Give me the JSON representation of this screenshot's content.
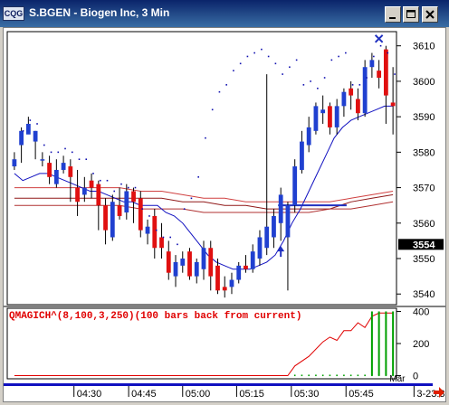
{
  "window": {
    "logo_text": "CQG",
    "title": "S.BGEN - Biogen Inc, 3 Min"
  },
  "colors": {
    "up_candle": "#2040d0",
    "down_candle": "#e01010",
    "price_axis_highlight": "#000000",
    "indicator_text": "#e00000",
    "indicator_line": "#e00000",
    "indicator_bars": "#00a000"
  },
  "chart_data": [
    {
      "type": "candlestick",
      "title": "S.BGEN - Biogen Inc, 3 Min",
      "ylim": [
        3537,
        3614
      ],
      "y_ticks": [
        3540,
        3550,
        3560,
        3570,
        3580,
        3590,
        3600,
        3610
      ],
      "current_price": 3554,
      "x_tick_labels": [
        "04:30",
        "04:45",
        "05:00",
        "05:15",
        "05:30",
        "05:45",
        "3-23:30"
      ],
      "x_tick_positions": [
        8.5,
        16.3,
        24.0,
        31.7,
        39.5,
        47.3,
        57.0
      ],
      "x_extra_label": {
        "text": "Mar",
        "position": 53.5
      },
      "candles": [
        [
          3576,
          3578,
          3580,
          3575
        ],
        [
          3582,
          3586,
          3587,
          3577
        ],
        [
          3585,
          3588,
          3590,
          3586
        ],
        [
          3583,
          3586,
          3586,
          3578
        ],
        [
          3578,
          3578,
          3580,
          3576
        ],
        [
          3577,
          3573,
          3579,
          3571
        ],
        [
          3571,
          3575,
          3578,
          3570
        ],
        [
          3575,
          3577,
          3579,
          3574
        ],
        [
          3576,
          3573,
          3578,
          3566
        ],
        [
          3570,
          3566,
          3575,
          3562
        ],
        [
          3568,
          3570,
          3573,
          3566
        ],
        [
          3572,
          3570,
          3574,
          3567
        ],
        [
          3571,
          3565,
          3572,
          3558
        ],
        [
          3565,
          3558,
          3567,
          3554
        ],
        [
          3556,
          3566,
          3568,
          3555
        ],
        [
          3565,
          3562,
          3570,
          3561
        ],
        [
          3563,
          3569,
          3571,
          3561
        ],
        [
          3569,
          3566,
          3570,
          3560
        ],
        [
          3567,
          3558,
          3569,
          3556
        ],
        [
          3557,
          3559,
          3561,
          3554
        ],
        [
          3562,
          3553,
          3564,
          3550
        ],
        [
          3556,
          3553,
          3560,
          3550
        ],
        [
          3552,
          3546,
          3555,
          3544
        ],
        [
          3545,
          3549,
          3551,
          3542
        ],
        [
          3548,
          3550,
          3552,
          3546
        ],
        [
          3552,
          3545,
          3553,
          3544
        ],
        [
          3545,
          3549,
          3550,
          3543
        ],
        [
          3547,
          3553,
          3555,
          3544
        ],
        [
          3553,
          3545,
          3555,
          3541
        ],
        [
          3548,
          3541,
          3550,
          3540
        ],
        [
          3542,
          3541,
          3545,
          3539
        ],
        [
          3542,
          3544,
          3546,
          3540
        ],
        [
          3544,
          3548,
          3549,
          3543
        ],
        [
          3548,
          3547,
          3551,
          3546
        ],
        [
          3547,
          3552,
          3554,
          3546
        ],
        [
          3550,
          3556,
          3558,
          3548
        ],
        [
          3553,
          3559,
          3602,
          3551
        ],
        [
          3556,
          3562,
          3564,
          3553
        ],
        [
          3560,
          3568,
          3570,
          3555
        ],
        [
          3556,
          3565,
          3566,
          3541
        ],
        [
          3565,
          3576,
          3578,
          3563
        ],
        [
          3575,
          3583,
          3586,
          3574
        ],
        [
          3582,
          3587,
          3590,
          3580
        ],
        [
          3586,
          3593,
          3594,
          3585
        ],
        [
          3591,
          3592,
          3596,
          3588
        ],
        [
          3593,
          3587,
          3594,
          3585
        ],
        [
          3587,
          3593,
          3595,
          3585
        ],
        [
          3593,
          3597,
          3598,
          3590
        ],
        [
          3598,
          3596,
          3600,
          3592
        ],
        [
          3595,
          3591,
          3598,
          3589
        ],
        [
          3591,
          3604,
          3606,
          3590
        ],
        [
          3604,
          3606,
          3608,
          3601
        ],
        [
          3603,
          3601,
          3606,
          3598
        ],
        [
          3609,
          3596,
          3610,
          3588
        ],
        [
          3594,
          3593,
          3604,
          3585
        ]
      ],
      "dots": [
        [
          3,
          3586
        ],
        [
          5,
          3589
        ],
        [
          7,
          3588
        ],
        [
          9,
          3582
        ],
        [
          11,
          3580
        ],
        [
          13,
          3580
        ],
        [
          15,
          3581
        ],
        [
          17,
          3580
        ],
        [
          19,
          3578
        ],
        [
          21,
          3578
        ],
        [
          23,
          3574
        ],
        [
          25,
          3572
        ],
        [
          27,
          3572
        ],
        [
          29,
          3569
        ],
        [
          31,
          3571
        ],
        [
          33,
          3570
        ],
        [
          35,
          3570
        ],
        [
          37,
          3564
        ],
        [
          39,
          3562
        ],
        [
          41,
          3558
        ],
        [
          43,
          3556
        ],
        [
          45,
          3556
        ],
        [
          47,
          3554
        ],
        [
          49,
          3564
        ],
        [
          51,
          3567
        ],
        [
          53,
          3573
        ],
        [
          55,
          3584
        ],
        [
          57,
          3592
        ],
        [
          59,
          3597
        ],
        [
          61,
          3599
        ],
        [
          63,
          3603
        ],
        [
          65,
          3605
        ],
        [
          67,
          3607
        ],
        [
          69,
          3608
        ],
        [
          71,
          3609
        ],
        [
          73,
          3607
        ],
        [
          75,
          3605
        ],
        [
          77,
          3602
        ],
        [
          79,
          3604
        ],
        [
          81,
          3606
        ],
        [
          83,
          3599
        ],
        [
          85,
          3600
        ],
        [
          87,
          3598
        ],
        [
          89,
          3601
        ],
        [
          91,
          3606
        ],
        [
          93,
          3607
        ],
        [
          95,
          3608
        ],
        [
          97,
          3599
        ],
        [
          99,
          3599
        ],
        [
          101,
          3601
        ],
        [
          103,
          3607
        ],
        [
          105,
          3610
        ],
        [
          107,
          3608
        ],
        [
          109,
          3602
        ]
      ],
      "moving_average_blue": [
        3574,
        3572,
        3573,
        3574,
        3574,
        3573,
        3572,
        3571,
        3570,
        3569,
        3569,
        3568,
        3567,
        3566,
        3566,
        3565,
        3565,
        3565,
        3563,
        3562,
        3560,
        3557,
        3554,
        3551,
        3549,
        3548,
        3547,
        3547,
        3547,
        3548,
        3549,
        3551,
        3555,
        3560,
        3564,
        3569,
        3574,
        3579,
        3584,
        3587,
        3589,
        3590,
        3591,
        3592,
        3593,
        3593
      ],
      "moving_average_red": [
        3570,
        3570,
        3570,
        3570,
        3570,
        3570,
        3569,
        3569,
        3568,
        3567,
        3567,
        3566,
        3566,
        3566,
        3566,
        3566,
        3567,
        3568,
        3569
      ],
      "moving_average_darkred": [
        3567,
        3567,
        3567,
        3567,
        3567,
        3567,
        3567,
        3567,
        3566,
        3566,
        3565,
        3565,
        3564,
        3564,
        3564,
        3564,
        3566,
        3567,
        3568
      ],
      "moving_average_low": [
        3565,
        3565,
        3565,
        3565,
        3565,
        3565,
        3564,
        3564,
        3564,
        3563,
        3563,
        3563,
        3563,
        3563,
        3563,
        3564,
        3564,
        3565,
        3566
      ],
      "horizontal_level": {
        "price": 3565,
        "start_index": 38,
        "end_index": 47
      },
      "marker_x": {
        "index": 52,
        "price": 3612
      },
      "up_arrow": {
        "index": 38,
        "price": 3551
      }
    },
    {
      "type": "line",
      "title": "QMAGICH^(8,100,3,250)(100 bars back from current)",
      "ylim": [
        -20,
        420
      ],
      "y_ticks": [
        0,
        200,
        400
      ],
      "line_values": [
        [
          0,
          0
        ],
        [
          39,
          0
        ],
        [
          40,
          60
        ],
        [
          42,
          120
        ],
        [
          44,
          210
        ],
        [
          45,
          240
        ],
        [
          46,
          220
        ],
        [
          47,
          280
        ],
        [
          48,
          280
        ],
        [
          49,
          330
        ],
        [
          50,
          300
        ],
        [
          51,
          370
        ],
        [
          52,
          390
        ],
        [
          53,
          390
        ],
        [
          54,
          390
        ]
      ],
      "green_bars": [
        [
          51,
          400
        ],
        [
          52,
          400
        ],
        [
          53,
          400
        ],
        [
          54,
          400
        ]
      ],
      "baseline_dots_from": 40
    }
  ]
}
